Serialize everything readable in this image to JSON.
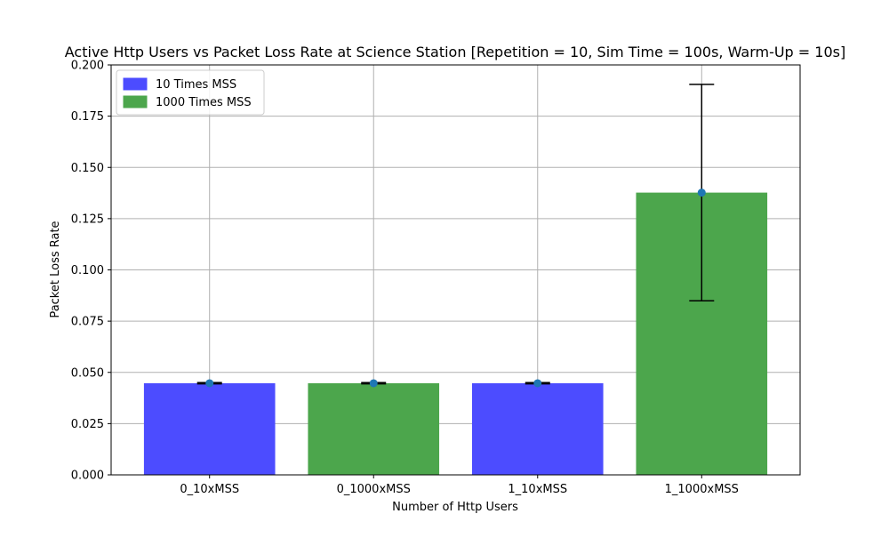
{
  "chart_data": {
    "type": "bar",
    "title": "Active Http Users vs Packet Loss Rate at Science Station [Repetition = 10, Sim Time = 100s, Warm-Up = 10s]",
    "xlabel": "Number of Http Users",
    "ylabel": "Packet Loss Rate",
    "ylim": [
      0,
      0.2
    ],
    "yticks": [
      "0.000",
      "0.025",
      "0.050",
      "0.075",
      "0.100",
      "0.125",
      "0.150",
      "0.175",
      "0.200"
    ],
    "categories": [
      "0_10xMSS",
      "0_1000xMSS",
      "1_10xMSS",
      "1_1000xMSS"
    ],
    "values": [
      0.0447,
      0.0447,
      0.0447,
      0.1377
    ],
    "errors": [
      0.0003,
      0.0003,
      0.0003,
      0.0528
    ],
    "bar_series": [
      "10 Times MSS",
      "1000 Times MSS",
      "10 Times MSS",
      "1000 Times MSS"
    ],
    "series": [
      {
        "name": "10 Times MSS",
        "color": "#4c4cff"
      },
      {
        "name": "1000 Times MSS",
        "color": "#4ca64c"
      }
    ],
    "marker_color": "#1f77b4",
    "grid": true,
    "legend_position": "top-left"
  }
}
